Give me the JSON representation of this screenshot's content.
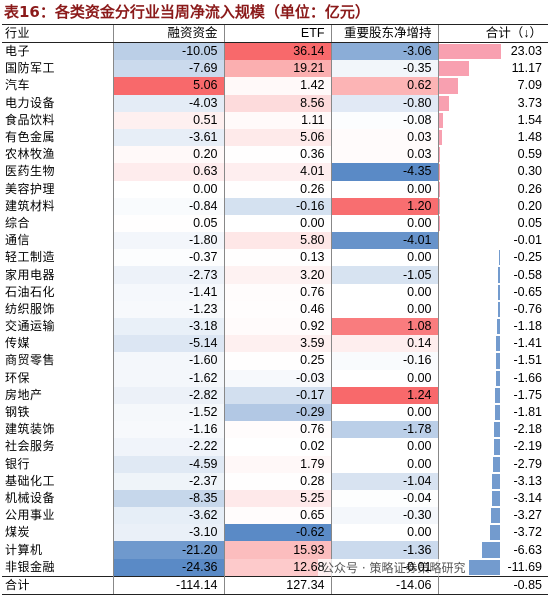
{
  "title": "表16：各类资金分行业当周净流入规模（单位：亿元）",
  "headers": [
    "行业",
    "融资资金",
    "ETF",
    "重要股东净增持",
    "合计（↓）"
  ],
  "rows": [
    {
      "industry": "电子",
      "margin": "-10.05",
      "etf": "36.14",
      "holders": "-3.06",
      "total": "23.03"
    },
    {
      "industry": "国防军工",
      "margin": "-7.69",
      "etf": "19.21",
      "holders": "-0.35",
      "total": "11.17"
    },
    {
      "industry": "汽车",
      "margin": "5.06",
      "etf": "1.42",
      "holders": "0.62",
      "total": "7.09"
    },
    {
      "industry": "电力设备",
      "margin": "-4.03",
      "etf": "8.56",
      "holders": "-0.80",
      "total": "3.73"
    },
    {
      "industry": "食品饮料",
      "margin": "0.51",
      "etf": "1.11",
      "holders": "-0.08",
      "total": "1.54"
    },
    {
      "industry": "有色金属",
      "margin": "-3.61",
      "etf": "5.06",
      "holders": "0.03",
      "total": "1.48"
    },
    {
      "industry": "农林牧渔",
      "margin": "0.20",
      "etf": "0.36",
      "holders": "0.03",
      "total": "0.59"
    },
    {
      "industry": "医药生物",
      "margin": "0.63",
      "etf": "4.01",
      "holders": "-4.35",
      "total": "0.30"
    },
    {
      "industry": "美容护理",
      "margin": "0.00",
      "etf": "0.26",
      "holders": "0.00",
      "total": "0.26"
    },
    {
      "industry": "建筑材料",
      "margin": "-0.84",
      "etf": "-0.16",
      "holders": "1.20",
      "total": "0.20"
    },
    {
      "industry": "综合",
      "margin": "0.05",
      "etf": "0.00",
      "holders": "0.00",
      "total": "0.05"
    },
    {
      "industry": "通信",
      "margin": "-1.80",
      "etf": "5.80",
      "holders": "-4.01",
      "total": "-0.01"
    },
    {
      "industry": "轻工制造",
      "margin": "-0.37",
      "etf": "0.13",
      "holders": "0.00",
      "total": "-0.25"
    },
    {
      "industry": "家用电器",
      "margin": "-2.73",
      "etf": "3.20",
      "holders": "-1.05",
      "total": "-0.58"
    },
    {
      "industry": "石油石化",
      "margin": "-1.41",
      "etf": "0.76",
      "holders": "0.00",
      "total": "-0.65"
    },
    {
      "industry": "纺织服饰",
      "margin": "-1.23",
      "etf": "0.46",
      "holders": "0.00",
      "total": "-0.76"
    },
    {
      "industry": "交通运输",
      "margin": "-3.18",
      "etf": "0.92",
      "holders": "1.08",
      "total": "-1.18"
    },
    {
      "industry": "传媒",
      "margin": "-5.14",
      "etf": "3.59",
      "holders": "0.14",
      "total": "-1.41"
    },
    {
      "industry": "商贸零售",
      "margin": "-1.60",
      "etf": "0.25",
      "holders": "-0.16",
      "total": "-1.51"
    },
    {
      "industry": "环保",
      "margin": "-1.62",
      "etf": "-0.03",
      "holders": "0.00",
      "total": "-1.66"
    },
    {
      "industry": "房地产",
      "margin": "-2.82",
      "etf": "-0.17",
      "holders": "1.24",
      "total": "-1.75"
    },
    {
      "industry": "钢铁",
      "margin": "-1.52",
      "etf": "-0.29",
      "holders": "0.00",
      "total": "-1.81"
    },
    {
      "industry": "建筑装饰",
      "margin": "-1.16",
      "etf": "0.76",
      "holders": "-1.78",
      "total": "-2.18"
    },
    {
      "industry": "社会服务",
      "margin": "-2.22",
      "etf": "0.02",
      "holders": "0.00",
      "total": "-2.19"
    },
    {
      "industry": "银行",
      "margin": "-4.59",
      "etf": "1.79",
      "holders": "0.00",
      "total": "-2.79"
    },
    {
      "industry": "基础化工",
      "margin": "-2.37",
      "etf": "0.28",
      "holders": "-1.04",
      "total": "-3.13"
    },
    {
      "industry": "机械设备",
      "margin": "-8.35",
      "etf": "5.25",
      "holders": "-0.04",
      "total": "-3.14"
    },
    {
      "industry": "公用事业",
      "margin": "-3.62",
      "etf": "0.65",
      "holders": "-0.30",
      "total": "-3.27"
    },
    {
      "industry": "煤炭",
      "margin": "-3.10",
      "etf": "-0.62",
      "holders": "0.00",
      "total": "-3.72"
    },
    {
      "industry": "计算机",
      "margin": "-21.20",
      "etf": "15.93",
      "holders": "-1.36",
      "total": "-6.63"
    },
    {
      "industry": "非银金融",
      "margin": "-24.36",
      "etf": "12.68",
      "holders": "-0.01",
      "total": "-11.69"
    }
  ],
  "total_row": {
    "industry": "合计",
    "margin": "-114.14",
    "etf": "127.34",
    "holders": "-14.06",
    "total": "-0.85"
  },
  "colors": {
    "positive_strong": "#F8696B",
    "negative_strong": "#5A8AC6",
    "white": "#FFFFFF",
    "total_bar": "#F8A0B0",
    "title": "#8B1A1A"
  },
  "watermark": "公众号 · 策略证券策略研究"
}
